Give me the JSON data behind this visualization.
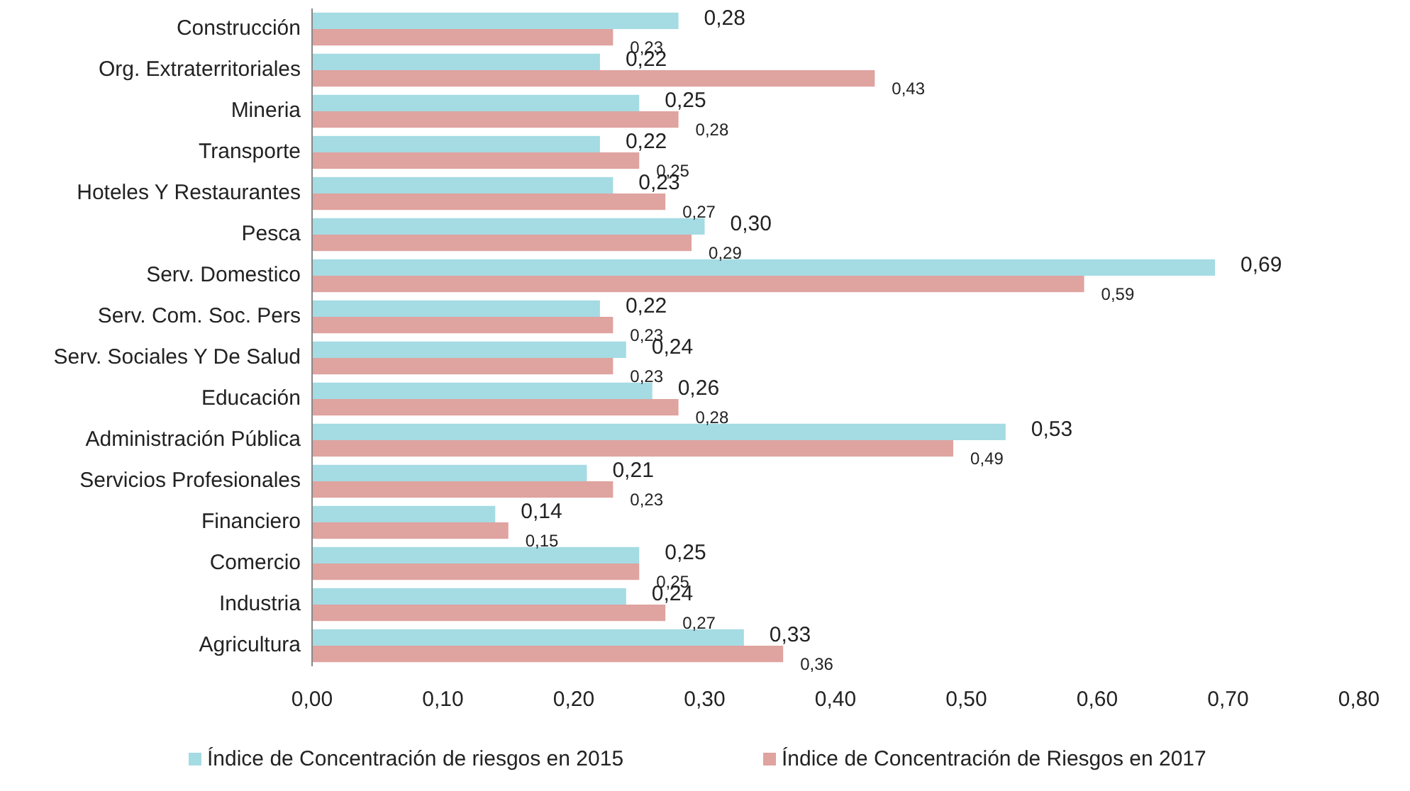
{
  "chart_data": {
    "type": "bar",
    "orientation": "horizontal",
    "categories": [
      "Construcción",
      "Org. Extraterritoriales",
      "Mineria",
      "Transporte",
      "Hoteles Y Restaurantes",
      "Pesca",
      "Serv. Domestico",
      "Serv. Com. Soc. Pers",
      "Serv. Sociales Y De Salud",
      "Educación",
      "Administración Pública",
      "Servicios Profesionales",
      "Financiero",
      "Comercio",
      "Industria",
      "Agricultura"
    ],
    "series": [
      {
        "name": "Índice de Concentración de riesgos en 2015",
        "color": "#a5dbe3",
        "values": [
          0.28,
          0.22,
          0.25,
          0.22,
          0.23,
          0.3,
          0.69,
          0.22,
          0.24,
          0.26,
          0.53,
          0.21,
          0.14,
          0.25,
          0.24,
          0.33
        ],
        "value_labels": [
          "0,28",
          "0,22",
          "0,25",
          "0,22",
          "0,23",
          "0,30",
          "0,69",
          "0,22",
          "0,24",
          "0,26",
          "0,53",
          "0,21",
          "0,14",
          "0,25",
          "0,24",
          "0,33"
        ]
      },
      {
        "name": "Índice de Concentración de Riesgos en 2017",
        "color": "#dfa3a0",
        "values": [
          0.23,
          0.43,
          0.28,
          0.25,
          0.27,
          0.29,
          0.59,
          0.23,
          0.23,
          0.28,
          0.49,
          0.23,
          0.15,
          0.25,
          0.27,
          0.36
        ],
        "value_labels": [
          "0,23",
          "0,43",
          "0,28",
          "0,25",
          "0,27",
          "0,29",
          "0,59",
          "0,23",
          "0,23",
          "0,28",
          "0,49",
          "0,23",
          "0,15",
          "0,25",
          "0,27",
          "0,36"
        ]
      }
    ],
    "xlim": [
      0,
      0.8
    ],
    "xticks": [
      {
        "value": 0,
        "label": "0,00"
      },
      {
        "value": 0.1,
        "label": "0,10"
      },
      {
        "value": 0.2,
        "label": "0,20"
      },
      {
        "value": 0.3,
        "label": "0,30"
      },
      {
        "value": 0.4,
        "label": "0,40"
      },
      {
        "value": 0.5,
        "label": "0,50"
      },
      {
        "value": 0.6,
        "label": "0,60"
      },
      {
        "value": 0.7,
        "label": "0,70"
      },
      {
        "value": 0.8,
        "label": "0,80"
      }
    ],
    "legend": "bottom",
    "grid": false
  }
}
